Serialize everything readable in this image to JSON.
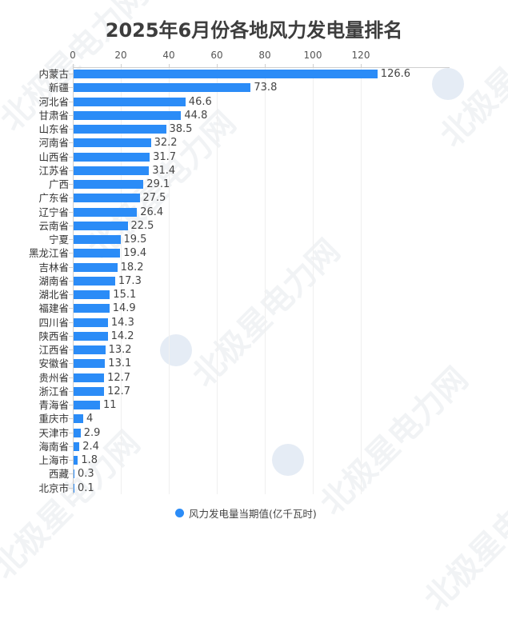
{
  "chart_data": {
    "type": "bar",
    "orientation": "horizontal",
    "title": "2025年6月份各地风力发电量排名",
    "xlabel": "",
    "ylabel": "",
    "xlim": [
      0,
      130
    ],
    "x_ticks": [
      0,
      20,
      40,
      60,
      80,
      100,
      120
    ],
    "grid": true,
    "legend_position": "bottom",
    "categories": [
      "内蒙古",
      "新疆",
      "河北省",
      "甘肃省",
      "山东省",
      "河南省",
      "山西省",
      "江苏省",
      "广西",
      "广东省",
      "辽宁省",
      "云南省",
      "宁夏",
      "黑龙江省",
      "吉林省",
      "湖南省",
      "湖北省",
      "福建省",
      "四川省",
      "陕西省",
      "江西省",
      "安徽省",
      "贵州省",
      "浙江省",
      "青海省",
      "重庆市",
      "天津市",
      "海南省",
      "上海市",
      "西藏",
      "北京市"
    ],
    "series": [
      {
        "name": "风力发电量当期值(亿千瓦时)",
        "color": "#2b8cf7",
        "values": [
          126.6,
          73.8,
          46.6,
          44.8,
          38.5,
          32.2,
          31.7,
          31.4,
          29.1,
          27.5,
          26.4,
          22.5,
          19.5,
          19.4,
          18.2,
          17.3,
          15.1,
          14.9,
          14.3,
          14.2,
          13.2,
          13.1,
          12.7,
          12.7,
          11,
          4,
          2.9,
          2.4,
          1.8,
          0.3,
          0.1
        ]
      }
    ]
  },
  "title": "2025年6月份各地风力发电量排名",
  "x_tick_labels": [
    "0",
    "20",
    "40",
    "60",
    "80",
    "100",
    "120"
  ],
  "legend": {
    "label": "风力发电量当期值(亿千瓦时)",
    "color": "#2b8cf7"
  },
  "rows": [
    {
      "label": "内蒙古",
      "value": "126.6"
    },
    {
      "label": "新疆",
      "value": "73.8"
    },
    {
      "label": "河北省",
      "value": "46.6"
    },
    {
      "label": "甘肃省",
      "value": "44.8"
    },
    {
      "label": "山东省",
      "value": "38.5"
    },
    {
      "label": "河南省",
      "value": "32.2"
    },
    {
      "label": "山西省",
      "value": "31.7"
    },
    {
      "label": "江苏省",
      "value": "31.4"
    },
    {
      "label": "广西",
      "value": "29.1"
    },
    {
      "label": "广东省",
      "value": "27.5"
    },
    {
      "label": "辽宁省",
      "value": "26.4"
    },
    {
      "label": "云南省",
      "value": "22.5"
    },
    {
      "label": "宁夏",
      "value": "19.5"
    },
    {
      "label": "黑龙江省",
      "value": "19.4"
    },
    {
      "label": "吉林省",
      "value": "18.2"
    },
    {
      "label": "湖南省",
      "value": "17.3"
    },
    {
      "label": "湖北省",
      "value": "15.1"
    },
    {
      "label": "福建省",
      "value": "14.9"
    },
    {
      "label": "四川省",
      "value": "14.3"
    },
    {
      "label": "陕西省",
      "value": "14.2"
    },
    {
      "label": "江西省",
      "value": "13.2"
    },
    {
      "label": "安徽省",
      "value": "13.1"
    },
    {
      "label": "贵州省",
      "value": "12.7"
    },
    {
      "label": "浙江省",
      "value": "12.7"
    },
    {
      "label": "青海省",
      "value": "11"
    },
    {
      "label": "重庆市",
      "value": "4"
    },
    {
      "label": "天津市",
      "value": "2.9"
    },
    {
      "label": "海南省",
      "value": "2.4"
    },
    {
      "label": "上海市",
      "value": "1.8"
    },
    {
      "label": "西藏",
      "value": "0.3"
    },
    {
      "label": "北京市",
      "value": "0.1"
    }
  ],
  "watermark": "北极星电力网"
}
